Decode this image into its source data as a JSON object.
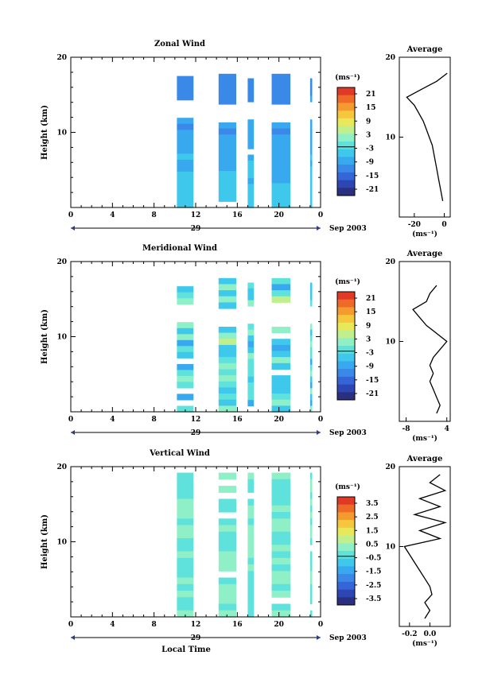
{
  "chart_data": [
    {
      "type": "heatmap",
      "title": "Zonal Wind",
      "ylabel": "Height (km)",
      "ylim": [
        0,
        20
      ],
      "xlim": [
        0,
        24
      ],
      "x_ticks": [
        "0",
        "4",
        "8",
        "12",
        "16",
        "20",
        "0"
      ],
      "y_ticks": [
        "10",
        "20"
      ],
      "date_label": "29",
      "month_label": "Sep 2003",
      "colorbar": {
        "unit": "(ms⁻¹)",
        "range": [
          -24,
          24
        ],
        "ticks": [
          "21",
          "15",
          "9",
          "3",
          "-3",
          "-9",
          "-15",
          "-21"
        ]
      },
      "observation_blocks": [
        {
          "start": 10.2,
          "end": 11.8,
          "top": 17.5
        },
        {
          "start": 14.2,
          "end": 15.9,
          "top": 17.8
        },
        {
          "start": 17.0,
          "end": 17.6,
          "top": 17.2
        },
        {
          "start": 19.3,
          "end": 21.1,
          "top": 17.8
        },
        {
          "start": 23.0,
          "end": 23.2,
          "top": 17.2
        }
      ],
      "average": {
        "title": "Average",
        "xlabel": "(ms⁻¹)",
        "x_ticks": [
          "-20",
          "0"
        ],
        "xlim": [
          -30,
          4
        ],
        "profile_z": [
          2,
          3,
          4,
          5,
          6,
          7,
          8,
          9,
          10,
          11,
          12,
          13,
          14,
          15,
          16,
          17,
          18
        ],
        "profile_u": [
          -1,
          -2,
          -3,
          -4,
          -5,
          -6,
          -7,
          -8,
          -10,
          -12,
          -14,
          -17,
          -20,
          -25,
          -15,
          -5,
          2
        ]
      }
    },
    {
      "type": "heatmap",
      "title": "Meridional Wind",
      "ylabel": "Height (km)",
      "ylim": [
        0,
        20
      ],
      "xlim": [
        0,
        24
      ],
      "x_ticks": [
        "0",
        "4",
        "8",
        "12",
        "16",
        "20",
        "0"
      ],
      "y_ticks": [
        "10",
        "20"
      ],
      "date_label": "29",
      "month_label": "Sep 2003",
      "colorbar": {
        "unit": "(ms⁻¹)",
        "range": [
          -24,
          24
        ],
        "ticks": [
          "21",
          "15",
          "9",
          "3",
          "-3",
          "-9",
          "-15",
          "-21"
        ]
      },
      "observation_blocks": [
        {
          "start": 10.2,
          "end": 11.8,
          "top": 17.5
        },
        {
          "start": 14.2,
          "end": 15.9,
          "top": 17.8
        },
        {
          "start": 17.0,
          "end": 17.6,
          "top": 17.2
        },
        {
          "start": 19.3,
          "end": 21.1,
          "top": 17.8
        },
        {
          "start": 23.0,
          "end": 23.2,
          "top": 17.2
        }
      ],
      "average": {
        "title": "Average",
        "xlabel": "(ms⁻¹)",
        "x_ticks": [
          "-8",
          "4"
        ],
        "xlim": [
          -10,
          5
        ],
        "profile_z": [
          1,
          2,
          3,
          4,
          5,
          6,
          7,
          8,
          9,
          10,
          11,
          12,
          13,
          14,
          15,
          16,
          17
        ],
        "profile_u": [
          1,
          2,
          1,
          0,
          -1,
          0,
          -1,
          0,
          2,
          4,
          1,
          -2,
          -4,
          -6,
          -2,
          -1,
          1
        ]
      }
    },
    {
      "type": "heatmap",
      "title": "Vertical Wind",
      "ylabel": "Height (km)",
      "xlabel": "Local Time",
      "ylim": [
        0,
        20
      ],
      "xlim": [
        0,
        24
      ],
      "x_ticks": [
        "0",
        "4",
        "8",
        "12",
        "16",
        "20",
        "0"
      ],
      "y_ticks": [
        "10",
        "20"
      ],
      "date_label": "29",
      "month_label": "Sep 2003",
      "colorbar": {
        "unit": "(ms⁻¹)",
        "range": [
          -4,
          4
        ],
        "ticks": [
          "3.5",
          "2.5",
          "1.5",
          "0.5",
          "-0.5",
          "-1.5",
          "-2.5",
          "-3.5"
        ]
      },
      "observation_blocks": [
        {
          "start": 10.2,
          "end": 11.8,
          "top": 19.2
        },
        {
          "start": 14.2,
          "end": 15.9,
          "top": 19.2
        },
        {
          "start": 17.0,
          "end": 17.6,
          "top": 19.2
        },
        {
          "start": 19.3,
          "end": 21.1,
          "top": 19.2
        },
        {
          "start": 23.0,
          "end": 23.2,
          "top": 19.2
        }
      ],
      "average": {
        "title": "Average",
        "xlabel": "(ms⁻¹)",
        "x_ticks": [
          "-0.2",
          "0.0"
        ],
        "xlim": [
          -0.3,
          0.2
        ],
        "profile_z": [
          1,
          2,
          3,
          4,
          5,
          6,
          7,
          8,
          9,
          10,
          11,
          12,
          13,
          14,
          15,
          16,
          17,
          18,
          19
        ],
        "profile_u": [
          -0.05,
          0.0,
          -0.05,
          0.02,
          0.0,
          -0.05,
          -0.1,
          -0.15,
          -0.2,
          -0.25,
          0.1,
          -0.1,
          0.15,
          -0.15,
          0.1,
          -0.1,
          0.15,
          0.0,
          0.1
        ]
      }
    }
  ]
}
